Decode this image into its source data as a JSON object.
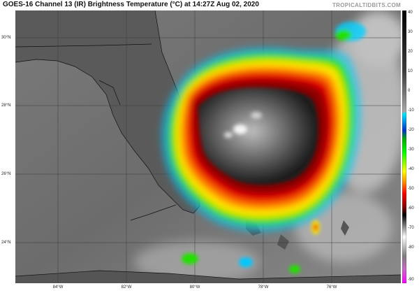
{
  "header": {
    "title": "GOES-16 Channel 13 (IR) Brightness Temperature (°C) at 14:27Z Aug 02, 2020",
    "credit": "TROPICALTIDBITS.COM"
  },
  "map": {
    "lat_labels": [
      "30°N",
      "28°N",
      "26°N",
      "24°N"
    ],
    "lon_labels": [
      "84°W",
      "82°W",
      "80°W",
      "78°W",
      "76°W"
    ]
  },
  "colorbar": {
    "labels": [
      "40",
      "30",
      "20",
      "10",
      "0",
      "-10",
      "-20",
      "-30",
      "-40",
      "-50",
      "-60",
      "-70",
      "-80",
      "-90"
    ],
    "colors": [
      "#000000",
      "#1a1a1a",
      "#333333",
      "#4d4d4d",
      "#666666",
      "#808080",
      "#999999",
      "#b3b3b3",
      "#cccccc",
      "#00e5ff",
      "#0033cc",
      "#00ff00",
      "#ffff00",
      "#ff8c00",
      "#ff0000",
      "#8b0000",
      "#ffffff",
      "#7f7f7f",
      "#ff00ff"
    ]
  }
}
